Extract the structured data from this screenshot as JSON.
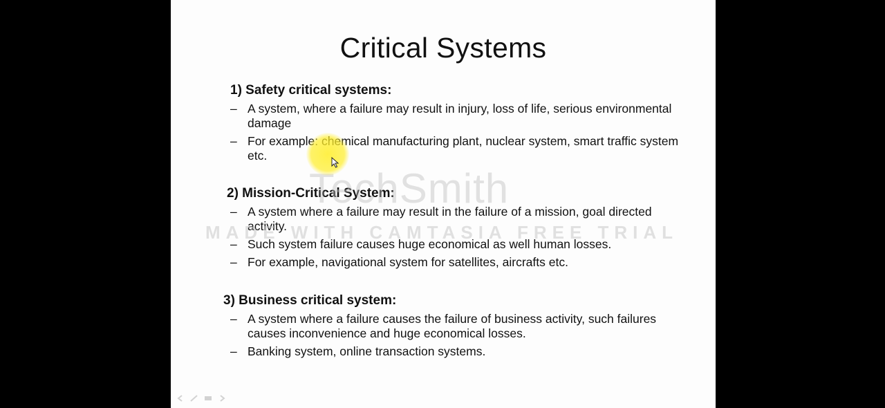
{
  "title": "Critical Systems",
  "sections": [
    {
      "heading": "1) Safety critical systems:",
      "bullets": [
        "A system, where a failure may result in injury, loss of life, serious environmental  damage",
        "For example: chemical manufacturing plant, nuclear system, smart traffic system etc."
      ]
    },
    {
      "heading": "2) Mission-Critical System:",
      "bullets": [
        "A system where a failure may result in the failure of a mission, goal directed activity.",
        "Such system failure causes huge economical as well human losses.",
        "For example, navigational system for satellites, aircrafts etc."
      ]
    },
    {
      "heading": "3) Business critical system:",
      "bullets": [
        "A system where a failure causes the failure of business activity, such failures causes inconvenience and huge economical losses.",
        "Banking system, online transaction systems."
      ]
    }
  ],
  "bullet_marker": "–",
  "watermark": {
    "brand": "TechSmith",
    "text": "MADE WITH CAMTASIA FREE TRIAL"
  },
  "icons": {
    "cursor": "mouse-pointer-icon",
    "highlight": "cursor-highlight"
  },
  "colors": {
    "background": "#000000",
    "slide": "#fdfdfd",
    "text": "#111111",
    "highlight": "#ffee28"
  }
}
